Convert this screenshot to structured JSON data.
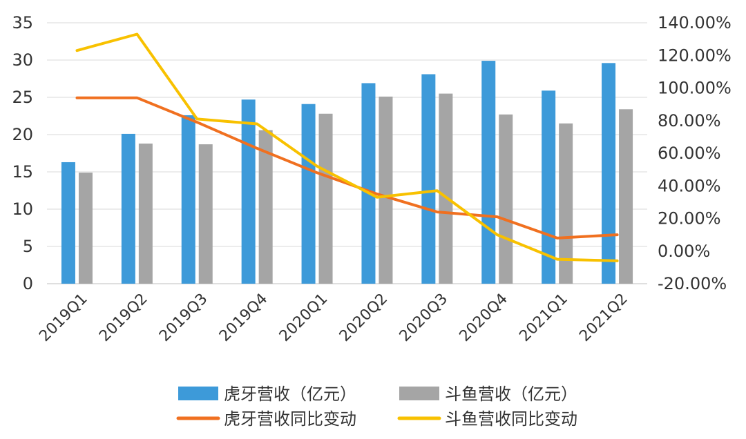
{
  "chart_data": {
    "type": "bar",
    "categories": [
      "2019Q1",
      "2019Q2",
      "2019Q3",
      "2019Q4",
      "2020Q1",
      "2020Q2",
      "2020Q3",
      "2020Q4",
      "2021Q1",
      "2021Q2"
    ],
    "series": [
      {
        "name": "虎牙营收（亿元）",
        "kind": "bar",
        "axis": "left",
        "color": "#3d9ad9",
        "values": [
          16.3,
          20.1,
          22.6,
          24.7,
          24.1,
          26.9,
          28.1,
          29.9,
          25.9,
          29.6
        ]
      },
      {
        "name": "斗鱼营收（亿元）",
        "kind": "bar",
        "axis": "left",
        "color": "#a5a5a5",
        "values": [
          14.9,
          18.8,
          18.7,
          20.6,
          22.8,
          25.1,
          25.5,
          22.7,
          21.5,
          23.4
        ]
      },
      {
        "name": "虎牙营收同比变动",
        "kind": "line",
        "axis": "right",
        "color": "#f07020",
        "values": [
          94,
          94,
          79,
          63,
          48,
          35,
          24,
          21,
          8,
          10
        ]
      },
      {
        "name": "斗鱼营收同比变动",
        "kind": "line",
        "axis": "right",
        "color": "#f8c100",
        "values": [
          123,
          133,
          81,
          78,
          52,
          33,
          37,
          10,
          -5,
          -6
        ]
      }
    ],
    "y_left": {
      "min": 0,
      "max": 35,
      "step": 5,
      "ticks": [
        "0",
        "5",
        "10",
        "15",
        "20",
        "25",
        "30",
        "35"
      ]
    },
    "y_right": {
      "min": -20,
      "max": 140,
      "step": 20,
      "ticks": [
        "-20.00%",
        "0.00%",
        "20.00%",
        "40.00%",
        "60.00%",
        "80.00%",
        "100.00%",
        "120.00%",
        "140.00%"
      ]
    },
    "grid": true,
    "legend_position": "bottom"
  }
}
